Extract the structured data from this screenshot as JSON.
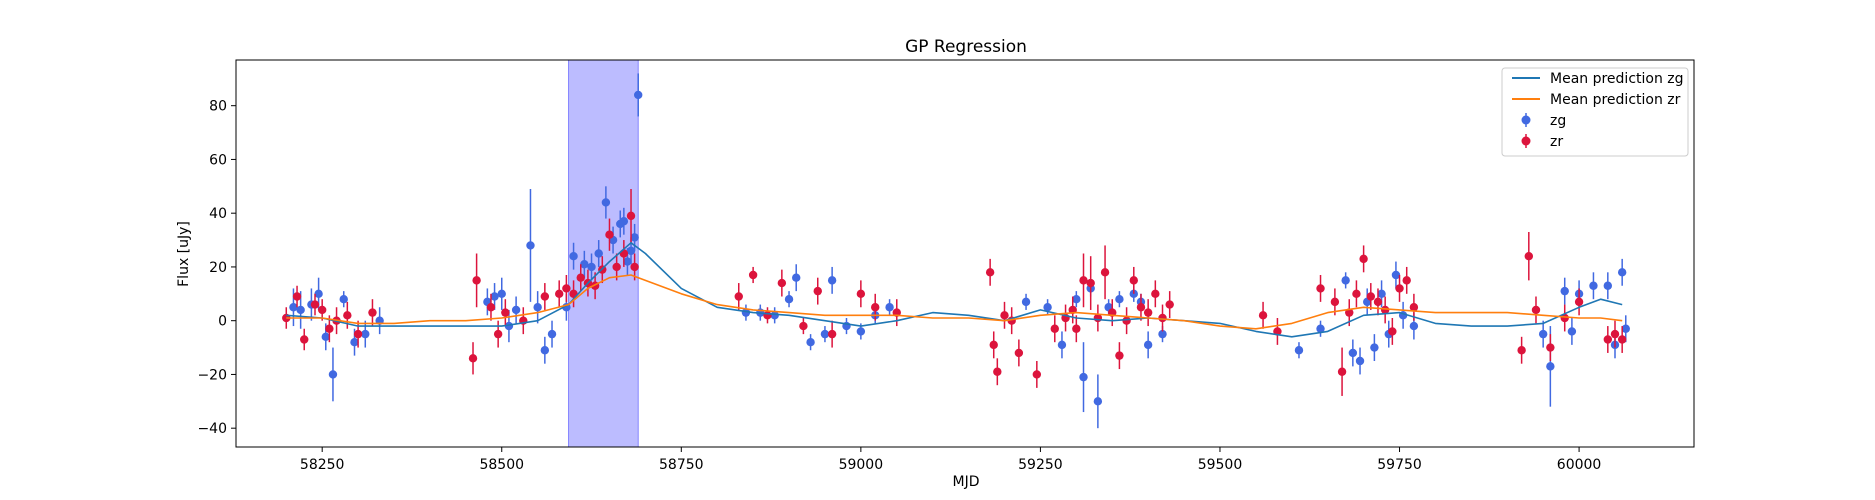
{
  "chart_data": {
    "type": "scatter",
    "title": "GP Regression",
    "xlabel": "MJD",
    "ylabel": "Flux [uJy]",
    "xlim": [
      58130,
      60160
    ],
    "ylim": [
      -47,
      97
    ],
    "xticks": [
      58250,
      58500,
      58750,
      59000,
      59250,
      59500,
      59750,
      60000
    ],
    "yticks": [
      -40,
      -20,
      0,
      20,
      40,
      60,
      80
    ],
    "grid": false,
    "legend_position": "top-right",
    "highlight_span": {
      "x0": 58593,
      "x1": 58690,
      "color": "#a6a6ff"
    },
    "colors": {
      "zg": "#4169e1",
      "zr": "#dc143c",
      "mean_zg": "#1f77b4",
      "mean_zr": "#ff7f0e"
    },
    "legend": [
      "Mean prediction zg",
      "Mean prediction zr",
      "zg",
      "zr"
    ],
    "series": [
      {
        "name": "Mean prediction zg",
        "kind": "line",
        "x": [
          58200,
          58250,
          58300,
          58350,
          58400,
          58450,
          58500,
          58550,
          58593,
          58620,
          58650,
          58680,
          58700,
          58750,
          58800,
          58850,
          58900,
          58950,
          59000,
          59050,
          59100,
          59150,
          59200,
          59250,
          59300,
          59350,
          59400,
          59450,
          59500,
          59550,
          59600,
          59650,
          59700,
          59750,
          59800,
          59850,
          59900,
          59950,
          60000,
          60030,
          60060
        ],
        "y": [
          2,
          1,
          -2,
          -2,
          -2,
          -2,
          -2,
          0,
          6,
          14,
          22,
          29,
          25,
          12,
          5,
          3,
          2,
          0,
          -2,
          0,
          3,
          2,
          0,
          4,
          1,
          0,
          1,
          0,
          -1,
          -4,
          -6,
          -4,
          2,
          3,
          -1,
          -2,
          -2,
          -1,
          5,
          8,
          6
        ]
      },
      {
        "name": "Mean prediction zr",
        "kind": "line",
        "x": [
          58200,
          58250,
          58300,
          58350,
          58400,
          58450,
          58500,
          58550,
          58593,
          58620,
          58650,
          58680,
          58700,
          58750,
          58800,
          58850,
          58900,
          58950,
          59000,
          59050,
          59100,
          59150,
          59200,
          59250,
          59300,
          59350,
          59400,
          59450,
          59500,
          59550,
          59600,
          59650,
          59700,
          59750,
          59800,
          59850,
          59900,
          59950,
          60000,
          60030,
          60060
        ],
        "y": [
          1,
          1,
          -1,
          -1,
          0,
          0,
          1,
          3,
          6,
          12,
          16,
          17,
          15,
          10,
          6,
          4,
          3,
          2,
          2,
          2,
          1,
          1,
          0,
          2,
          3,
          2,
          1,
          0,
          -2,
          -3,
          -1,
          3,
          5,
          4,
          3,
          3,
          3,
          2,
          1,
          1,
          0
        ]
      },
      {
        "name": "zg",
        "kind": "errorbar",
        "x": [
          58210,
          58220,
          58235,
          58245,
          58255,
          58265,
          58280,
          58295,
          58310,
          58330,
          58480,
          58490,
          58500,
          58510,
          58520,
          58540,
          58550,
          58560,
          58570,
          58590,
          58600,
          58615,
          58625,
          58635,
          58645,
          58655,
          58665,
          58670,
          58675,
          58680,
          58685,
          58690,
          58840,
          58860,
          58880,
          58900,
          58910,
          58930,
          58950,
          58960,
          58980,
          59000,
          59020,
          59040,
          59230,
          59260,
          59280,
          59300,
          59310,
          59320,
          59330,
          59345,
          59360,
          59380,
          59390,
          59400,
          59420,
          59610,
          59640,
          59675,
          59685,
          59695,
          59705,
          59715,
          59725,
          59735,
          59745,
          59755,
          59770,
          59950,
          59960,
          59980,
          59990,
          60000,
          60020,
          60040,
          60050,
          60060,
          60065
        ],
        "y": [
          5,
          4,
          6,
          10,
          -6,
          -20,
          8,
          -8,
          -5,
          0,
          7,
          9,
          10,
          -2,
          4,
          28,
          5,
          -11,
          -5,
          5,
          24,
          21,
          20,
          25,
          44,
          30,
          36,
          37,
          22,
          26,
          31,
          84,
          3,
          3,
          2,
          8,
          16,
          -8,
          -5,
          15,
          -2,
          -4,
          2,
          5,
          7,
          5,
          -9,
          8,
          -21,
          12,
          -30,
          5,
          8,
          10,
          7,
          -9,
          -5,
          -11,
          -3,
          15,
          -12,
          -15,
          7,
          -10,
          10,
          -5,
          17,
          2,
          -2,
          -5,
          -17,
          11,
          -4,
          10,
          13,
          13,
          -9,
          18,
          -3
        ],
        "err": [
          7,
          7,
          6,
          6,
          5,
          10,
          3,
          5,
          5,
          5,
          5,
          5,
          6,
          6,
          5,
          21,
          6,
          5,
          5,
          5,
          5,
          5,
          5,
          5,
          6,
          5,
          5,
          5,
          5,
          5,
          5,
          8,
          3,
          3,
          3,
          3,
          5,
          3,
          3,
          5,
          3,
          3,
          3,
          3,
          3,
          3,
          5,
          3,
          13,
          3,
          10,
          3,
          3,
          3,
          3,
          5,
          3,
          3,
          3,
          3,
          5,
          5,
          5,
          5,
          5,
          5,
          5,
          5,
          5,
          5,
          15,
          5,
          5,
          5,
          5,
          5,
          5,
          5,
          5
        ]
      },
      {
        "name": "zr",
        "kind": "errorbar",
        "x": [
          58200,
          58215,
          58225,
          58240,
          58250,
          58260,
          58270,
          58285,
          58300,
          58320,
          58460,
          58465,
          58485,
          58495,
          58505,
          58530,
          58560,
          58580,
          58590,
          58600,
          58610,
          58620,
          58630,
          58640,
          58650,
          58660,
          58670,
          58680,
          58685,
          58830,
          58850,
          58870,
          58890,
          58920,
          58940,
          58960,
          59000,
          59020,
          59050,
          59180,
          59185,
          59190,
          59200,
          59210,
          59220,
          59245,
          59270,
          59285,
          59295,
          59300,
          59310,
          59320,
          59330,
          59340,
          59350,
          59360,
          59370,
          59380,
          59390,
          59400,
          59410,
          59420,
          59430,
          59560,
          59580,
          59640,
          59660,
          59670,
          59680,
          59690,
          59700,
          59710,
          59720,
          59730,
          59740,
          59750,
          59760,
          59770,
          59920,
          59930,
          59940,
          59960,
          59980,
          60000,
          60040,
          60050,
          60060
        ],
        "y": [
          1,
          9,
          -7,
          6,
          4,
          -3,
          0,
          2,
          -5,
          3,
          -14,
          15,
          5,
          -5,
          3,
          0,
          9,
          10,
          12,
          10,
          16,
          14,
          13,
          19,
          32,
          20,
          25,
          39,
          20,
          9,
          17,
          2,
          14,
          -2,
          11,
          -5,
          10,
          5,
          3,
          18,
          -9,
          -19,
          2,
          0,
          -12,
          -20,
          -3,
          1,
          4,
          -3,
          15,
          14,
          1,
          18,
          3,
          -13,
          0,
          15,
          5,
          3,
          10,
          1,
          6,
          2,
          -4,
          12,
          7,
          -19,
          3,
          10,
          23,
          9,
          7,
          4,
          -4,
          12,
          15,
          5,
          -11,
          24,
          4,
          -10,
          1,
          7,
          -7,
          -5,
          -7
        ],
        "err": [
          4,
          4,
          4,
          4,
          4,
          5,
          5,
          5,
          5,
          5,
          6,
          10,
          5,
          5,
          5,
          5,
          5,
          5,
          5,
          5,
          5,
          5,
          5,
          5,
          6,
          5,
          5,
          10,
          5,
          5,
          3,
          3,
          5,
          3,
          5,
          5,
          5,
          5,
          5,
          5,
          5,
          5,
          5,
          5,
          5,
          5,
          5,
          5,
          5,
          5,
          10,
          10,
          5,
          10,
          5,
          5,
          5,
          5,
          5,
          5,
          5,
          5,
          5,
          5,
          5,
          5,
          5,
          9,
          5,
          5,
          5,
          5,
          5,
          5,
          5,
          5,
          5,
          5,
          5,
          9,
          5,
          5,
          5,
          5,
          5,
          5,
          5
        ]
      }
    ]
  }
}
